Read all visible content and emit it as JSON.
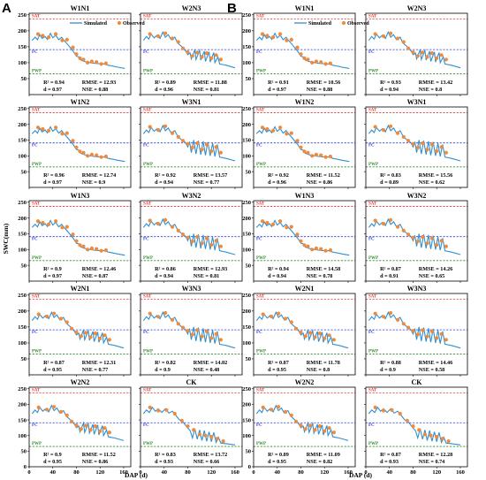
{
  "chart_data": {
    "type": "line",
    "xlabel": "DAP (d)",
    "ylabel": "SWC(mm)",
    "xticks": [
      0,
      40,
      80,
      120,
      160
    ],
    "yticks": [
      0,
      50,
      100,
      150,
      200,
      250
    ],
    "xlim": [
      0,
      172
    ],
    "ylim": [
      0,
      255
    ],
    "legend": [
      "Simulated",
      "Observed"
    ],
    "reference_lines": [
      {
        "label": "SAT",
        "value": 237,
        "color": "#e8382f"
      },
      {
        "label": "FC",
        "value": 141,
        "color": "#2b3ddb"
      },
      {
        "label": "PWP",
        "value": 65,
        "color": "#2e8b2e"
      }
    ],
    "colors": {
      "simulated": "#2f8fcf",
      "observed": "#f08a3c"
    },
    "groups": [
      {
        "letter": "A",
        "panels": [
          {
            "title": "W1N1",
            "stats": [
              "R² = 0.94",
              "RMSE = 12.93",
              "d = 0.97",
              "NSE = 0.88"
            ]
          },
          {
            "title": "W2N3",
            "stats": [
              "R² = 0.89",
              "RMSE = 11.88",
              "d = 0.96",
              "NSE = 0.81"
            ]
          },
          {
            "title": "W1N2",
            "stats": [
              "R² = 0.96",
              "RMSE = 12.74",
              "d = 0.97",
              "NSE = 0.9"
            ]
          },
          {
            "title": "W3N1",
            "stats": [
              "R² = 0.92",
              "RMSE = 13.57",
              "d = 0.94",
              "NSE = 0.77"
            ]
          },
          {
            "title": "W1N3",
            "stats": [
              "R² = 0.9",
              "RMSE = 12.46",
              "d = 0.97",
              "NSE = 0.87"
            ]
          },
          {
            "title": "W3N2",
            "stats": [
              "R² = 0.86",
              "RMSE = 12.93",
              "d = 0.94",
              "NSE = 0.81"
            ]
          },
          {
            "title": "W2N1",
            "stats": [
              "R² = 0.87",
              "RMSE = 12.31",
              "d = 0.95",
              "NSE = 0.77"
            ]
          },
          {
            "title": "W3N3",
            "stats": [
              "R² = 0.82",
              "RMSE = 14.02",
              "d = 0.9",
              "NSE = 0.48"
            ]
          },
          {
            "title": "W2N2",
            "stats": [
              "R² = 0.9",
              "RMSE = 11.52",
              "d = 0.95",
              "NSE = 0.86"
            ]
          },
          {
            "title": "CK",
            "stats": [
              "R² = 0.83",
              "RMSE = 13.72",
              "d = 0.93",
              "NSE = 0.66"
            ]
          }
        ]
      },
      {
        "letter": "B",
        "panels": [
          {
            "title": "W1N1",
            "stats": [
              "R² = 0.91",
              "RMSE = 10.56",
              "d = 0.97",
              "NSE = 0.88"
            ]
          },
          {
            "title": "W2N3",
            "stats": [
              "R² = 0.93",
              "RMSE = 13.42",
              "d = 0.94",
              "NSE = 0.8"
            ]
          },
          {
            "title": "W1N2",
            "stats": [
              "R² = 0.92",
              "RMSE = 11.52",
              "d = 0.96",
              "NSE = 0.86"
            ]
          },
          {
            "title": "W3N1",
            "stats": [
              "R² = 0.83",
              "RMSE = 15.56",
              "d = 0.89",
              "NSE = 0.62"
            ]
          },
          {
            "title": "W1N3",
            "stats": [
              "R² = 0.94",
              "RMSE = 14.58",
              "d = 0.94",
              "NSE = 0.78"
            ]
          },
          {
            "title": "W3N2",
            "stats": [
              "R² = 0.87",
              "RMSE = 14.26",
              "d = 0.91",
              "NSE = 0.65"
            ]
          },
          {
            "title": "W2N1",
            "stats": [
              "R² = 0.87",
              "RMSE = 11.78",
              "d = 0.95",
              "NSE = 0.8"
            ]
          },
          {
            "title": "W3N3",
            "stats": [
              "R² = 0.88",
              "RMSE = 14.46",
              "d = 0.9",
              "NSE = 0.58"
            ]
          },
          {
            "title": "W2N2",
            "stats": [
              "R² = 0.89",
              "RMSE = 11.09",
              "d = 0.95",
              "NSE = 0.82"
            ]
          },
          {
            "title": "CK",
            "stats": [
              "R² = 0.87",
              "RMSE = 12.28",
              "d = 0.93",
              "NSE = 0.74"
            ]
          }
        ]
      }
    ],
    "series_profiles": {
      "simulated_W1": [
        [
          5,
          170
        ],
        [
          10,
          180
        ],
        [
          14,
          172
        ],
        [
          18,
          188
        ],
        [
          22,
          176
        ],
        [
          27,
          182
        ],
        [
          31,
          173
        ],
        [
          36,
          192
        ],
        [
          40,
          178
        ],
        [
          45,
          186
        ],
        [
          50,
          172
        ],
        [
          55,
          180
        ],
        [
          60,
          168
        ],
        [
          64,
          160
        ],
        [
          70,
          146
        ],
        [
          75,
          135
        ],
        [
          80,
          120
        ],
        [
          84,
          118
        ],
        [
          88,
          108
        ],
        [
          93,
          104
        ],
        [
          98,
          102
        ],
        [
          104,
          100
        ],
        [
          110,
          98
        ],
        [
          116,
          97
        ],
        [
          122,
          97
        ],
        [
          128,
          96
        ],
        [
          134,
          92
        ],
        [
          140,
          90
        ],
        [
          150,
          86
        ],
        [
          162,
          82
        ]
      ],
      "observed_W1": [
        [
          15,
          190
        ],
        [
          23,
          185
        ],
        [
          33,
          180
        ],
        [
          45,
          190
        ],
        [
          56,
          170
        ],
        [
          64,
          172
        ],
        [
          74,
          148
        ],
        [
          80,
          127
        ],
        [
          86,
          114
        ],
        [
          92,
          110
        ],
        [
          99,
          100
        ],
        [
          106,
          104
        ],
        [
          114,
          102
        ],
        [
          122,
          96
        ],
        [
          130,
          98
        ]
      ],
      "simulated_W2": [
        [
          5,
          170
        ],
        [
          10,
          182
        ],
        [
          14,
          174
        ],
        [
          18,
          190
        ],
        [
          23,
          178
        ],
        [
          28,
          186
        ],
        [
          33,
          176
        ],
        [
          38,
          196
        ],
        [
          42,
          180
        ],
        [
          47,
          188
        ],
        [
          52,
          172
        ],
        [
          58,
          180
        ],
        [
          63,
          162
        ],
        [
          70,
          150
        ],
        [
          76,
          138
        ],
        [
          80,
          125
        ],
        [
          84,
          130
        ],
        [
          86,
          112
        ],
        [
          92,
          140
        ],
        [
          94,
          110
        ],
        [
          100,
          138
        ],
        [
          102,
          108
        ],
        [
          108,
          136
        ],
        [
          110,
          104
        ],
        [
          116,
          134
        ],
        [
          118,
          102
        ],
        [
          124,
          132
        ],
        [
          126,
          100
        ],
        [
          131,
          118
        ],
        [
          134,
          96
        ],
        [
          145,
          92
        ],
        [
          160,
          84
        ]
      ],
      "observed_W2": [
        [
          16,
          190
        ],
        [
          30,
          183
        ],
        [
          42,
          192
        ],
        [
          54,
          176
        ],
        [
          64,
          165
        ],
        [
          72,
          145
        ],
        [
          80,
          133
        ],
        [
          88,
          121
        ],
        [
          96,
          132
        ],
        [
          104,
          118
        ],
        [
          112,
          130
        ],
        [
          120,
          114
        ],
        [
          128,
          124
        ],
        [
          136,
          110
        ]
      ],
      "simulated_W3": [
        [
          5,
          170
        ],
        [
          10,
          182
        ],
        [
          14,
          174
        ],
        [
          18,
          190
        ],
        [
          23,
          178
        ],
        [
          28,
          186
        ],
        [
          33,
          176
        ],
        [
          38,
          196
        ],
        [
          42,
          180
        ],
        [
          47,
          188
        ],
        [
          52,
          172
        ],
        [
          58,
          180
        ],
        [
          63,
          162
        ],
        [
          70,
          150
        ],
        [
          76,
          142
        ],
        [
          80,
          128
        ],
        [
          83,
          145
        ],
        [
          86,
          110
        ],
        [
          90,
          150
        ],
        [
          94,
          106
        ],
        [
          98,
          148
        ],
        [
          102,
          104
        ],
        [
          106,
          146
        ],
        [
          110,
          102
        ],
        [
          114,
          144
        ],
        [
          118,
          100
        ],
        [
          122,
          140
        ],
        [
          126,
          98
        ],
        [
          130,
          136
        ],
        [
          134,
          96
        ],
        [
          145,
          92
        ],
        [
          160,
          84
        ]
      ],
      "observed_W3": [
        [
          16,
          192
        ],
        [
          30,
          182
        ],
        [
          42,
          194
        ],
        [
          54,
          172
        ],
        [
          64,
          160
        ],
        [
          72,
          148
        ],
        [
          80,
          138
        ],
        [
          88,
          126
        ],
        [
          96,
          140
        ],
        [
          104,
          120
        ],
        [
          112,
          136
        ],
        [
          120,
          115
        ],
        [
          128,
          128
        ],
        [
          136,
          110
        ]
      ],
      "simulated_CK": [
        [
          5,
          170
        ],
        [
          10,
          182
        ],
        [
          15,
          174
        ],
        [
          20,
          190
        ],
        [
          25,
          178
        ],
        [
          30,
          186
        ],
        [
          36,
          174
        ],
        [
          42,
          186
        ],
        [
          48,
          172
        ],
        [
          54,
          178
        ],
        [
          60,
          164
        ],
        [
          66,
          150
        ],
        [
          72,
          144
        ],
        [
          78,
          128
        ],
        [
          84,
          116
        ],
        [
          88,
          92
        ],
        [
          92,
          122
        ],
        [
          96,
          88
        ],
        [
          100,
          118
        ],
        [
          104,
          84
        ],
        [
          108,
          116
        ],
        [
          112,
          82
        ],
        [
          116,
          112
        ],
        [
          120,
          80
        ],
        [
          124,
          110
        ],
        [
          128,
          78
        ],
        [
          132,
          94
        ],
        [
          136,
          76
        ],
        [
          145,
          74
        ],
        [
          160,
          70
        ]
      ],
      "observed_CK": [
        [
          16,
          190
        ],
        [
          30,
          180
        ],
        [
          44,
          182
        ],
        [
          58,
          170
        ],
        [
          70,
          148
        ],
        [
          80,
          130
        ],
        [
          90,
          118
        ],
        [
          100,
          104
        ],
        [
          110,
          100
        ],
        [
          120,
          96
        ],
        [
          130,
          90
        ],
        [
          140,
          82
        ]
      ]
    }
  }
}
